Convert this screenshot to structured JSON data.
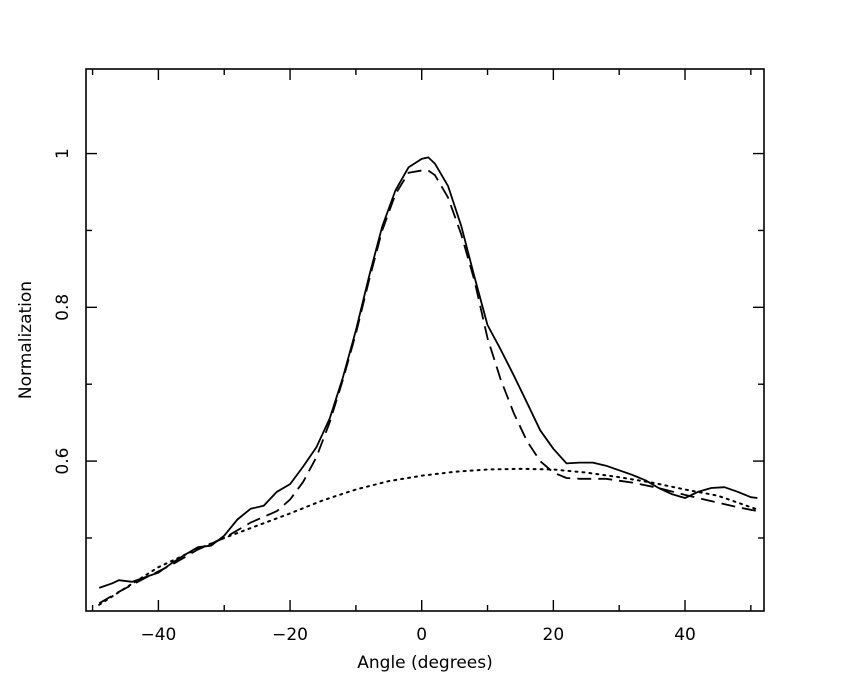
{
  "chart_data": {
    "type": "line",
    "title": "",
    "xlabel": "Angle (degrees)",
    "ylabel": "Normalization",
    "xlim": [
      -51,
      52
    ],
    "ylim": [
      0.405,
      1.11
    ],
    "xticks_major": [
      -40,
      -20,
      0,
      20,
      40
    ],
    "xtick_labels": [
      "−40",
      "−20",
      "0",
      "20",
      "40"
    ],
    "xticks_minor": [
      -50,
      -30,
      -10,
      10,
      30,
      50
    ],
    "yticks_major": [
      0.6,
      0.8,
      1.0
    ],
    "ytick_labels": [
      "0.6",
      "0.8",
      "1"
    ],
    "yticks_minor": [
      0.5,
      0.7,
      0.9
    ],
    "grid": false,
    "legend": "none",
    "series": [
      {
        "style": "solid",
        "x": [
          -49,
          -47,
          -46,
          -44,
          -42,
          -40,
          -38,
          -36,
          -34,
          -32,
          -30,
          -28,
          -26,
          -24,
          -22,
          -20,
          -18,
          -16,
          -14,
          -12,
          -10,
          -8,
          -6,
          -4,
          -2,
          0,
          1,
          2,
          4,
          6,
          8,
          10,
          12,
          14,
          16,
          18,
          20,
          22,
          24,
          26,
          28,
          30,
          32,
          34,
          36,
          38,
          40,
          42,
          44,
          46,
          48,
          50,
          51
        ],
        "y": [
          0.435,
          0.441,
          0.445,
          0.443,
          0.449,
          0.455,
          0.467,
          0.478,
          0.488,
          0.49,
          0.503,
          0.524,
          0.538,
          0.542,
          0.56,
          0.57,
          0.593,
          0.618,
          0.655,
          0.708,
          0.77,
          0.84,
          0.905,
          0.952,
          0.982,
          0.993,
          0.995,
          0.987,
          0.958,
          0.906,
          0.84,
          0.777,
          0.745,
          0.711,
          0.676,
          0.64,
          0.616,
          0.597,
          0.598,
          0.598,
          0.594,
          0.588,
          0.582,
          0.575,
          0.565,
          0.557,
          0.552,
          0.56,
          0.565,
          0.566,
          0.56,
          0.553,
          0.552
        ]
      },
      {
        "style": "dashed",
        "x": [
          -49,
          -46,
          -42,
          -38,
          -34,
          -30,
          -26,
          -22,
          -20,
          -18,
          -16,
          -14,
          -12,
          -10,
          -8,
          -6,
          -4,
          -2,
          0,
          1,
          2,
          4,
          6,
          8,
          10,
          12,
          14,
          16,
          18,
          20,
          22,
          24,
          28,
          32,
          36,
          40,
          44,
          48,
          51
        ],
        "y": [
          0.415,
          0.43,
          0.448,
          0.465,
          0.485,
          0.5,
          0.52,
          0.535,
          0.55,
          0.573,
          0.605,
          0.65,
          0.705,
          0.766,
          0.835,
          0.9,
          0.947,
          0.975,
          0.978,
          0.978,
          0.972,
          0.943,
          0.895,
          0.835,
          0.76,
          0.706,
          0.662,
          0.626,
          0.6,
          0.585,
          0.578,
          0.577,
          0.577,
          0.572,
          0.565,
          0.556,
          0.548,
          0.54,
          0.535
        ]
      },
      {
        "style": "dotted",
        "x": [
          -49,
          -45,
          -40,
          -35,
          -30,
          -25,
          -20,
          -15,
          -10,
          -5,
          0,
          5,
          10,
          15,
          20,
          25,
          30,
          35,
          40,
          45,
          51
        ],
        "y": [
          0.413,
          0.435,
          0.462,
          0.482,
          0.5,
          0.516,
          0.532,
          0.549,
          0.563,
          0.574,
          0.581,
          0.586,
          0.589,
          0.59,
          0.589,
          0.585,
          0.579,
          0.572,
          0.563,
          0.555,
          0.537
        ]
      }
    ]
  }
}
